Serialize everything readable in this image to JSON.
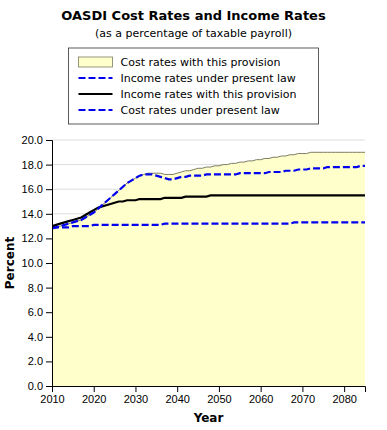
{
  "chart_data": {
    "type": "line",
    "title": "OASDI Cost Rates and Income Rates",
    "subtitle": "(as a percentage of taxable payroll)",
    "x_label": "Year",
    "y_label": "Percent",
    "x": [
      2010,
      2011,
      2012,
      2013,
      2014,
      2015,
      2016,
      2017,
      2018,
      2019,
      2020,
      2021,
      2022,
      2023,
      2024,
      2025,
      2026,
      2027,
      2028,
      2029,
      2030,
      2031,
      2032,
      2033,
      2034,
      2035,
      2036,
      2037,
      2038,
      2039,
      2040,
      2041,
      2042,
      2043,
      2044,
      2045,
      2046,
      2047,
      2048,
      2049,
      2050,
      2051,
      2052,
      2053,
      2054,
      2055,
      2056,
      2057,
      2058,
      2059,
      2060,
      2061,
      2062,
      2063,
      2064,
      2065,
      2066,
      2067,
      2068,
      2069,
      2070,
      2071,
      2072,
      2073,
      2074,
      2075,
      2076,
      2077,
      2078,
      2079,
      2080,
      2081,
      2082,
      2083,
      2084,
      2085
    ],
    "series": [
      {
        "name": "Cost rates with this provision",
        "type": "area",
        "color": "#ffffcc",
        "line_style": "solid",
        "values": [
          12.8,
          12.9,
          13.0,
          13.1,
          13.2,
          13.3,
          13.4,
          13.5,
          13.7,
          13.9,
          14.1,
          14.4,
          14.7,
          15.0,
          15.3,
          15.6,
          15.9,
          16.2,
          16.5,
          16.7,
          16.9,
          17.1,
          17.2,
          17.3,
          17.3,
          17.3,
          17.3,
          17.2,
          17.2,
          17.2,
          17.3,
          17.4,
          17.5,
          17.5,
          17.6,
          17.7,
          17.7,
          17.8,
          17.8,
          17.9,
          17.9,
          18.0,
          18.0,
          18.1,
          18.1,
          18.2,
          18.2,
          18.3,
          18.3,
          18.4,
          18.4,
          18.5,
          18.5,
          18.6,
          18.6,
          18.7,
          18.7,
          18.8,
          18.8,
          18.9,
          18.9,
          18.9,
          19.0,
          19.0,
          19.0,
          19.0,
          19.0,
          19.0,
          19.0,
          19.0,
          19.0,
          19.0,
          19.0,
          19.0,
          19.0,
          19.0
        ]
      },
      {
        "name": "Income rates under present law",
        "type": "line",
        "color": "#0000ee",
        "line_style": "dashed",
        "values": [
          12.9,
          12.9,
          12.9,
          12.9,
          12.9,
          13.0,
          13.0,
          13.0,
          13.0,
          13.0,
          13.1,
          13.1,
          13.1,
          13.1,
          13.1,
          13.1,
          13.1,
          13.1,
          13.1,
          13.1,
          13.1,
          13.1,
          13.1,
          13.1,
          13.1,
          13.1,
          13.1,
          13.2,
          13.2,
          13.2,
          13.2,
          13.2,
          13.2,
          13.2,
          13.2,
          13.2,
          13.2,
          13.2,
          13.2,
          13.2,
          13.2,
          13.2,
          13.2,
          13.2,
          13.2,
          13.2,
          13.2,
          13.2,
          13.2,
          13.2,
          13.2,
          13.2,
          13.2,
          13.2,
          13.2,
          13.2,
          13.2,
          13.2,
          13.3,
          13.3,
          13.3,
          13.3,
          13.3,
          13.3,
          13.3,
          13.3,
          13.3,
          13.3,
          13.3,
          13.3,
          13.3,
          13.3,
          13.3,
          13.3,
          13.3,
          13.3
        ]
      },
      {
        "name": "Income rates with this provision",
        "type": "line",
        "color": "#000000",
        "line_style": "solid",
        "values": [
          13.0,
          13.1,
          13.2,
          13.3,
          13.4,
          13.5,
          13.6,
          13.7,
          13.9,
          14.1,
          14.3,
          14.5,
          14.6,
          14.7,
          14.8,
          14.9,
          15.0,
          15.0,
          15.1,
          15.1,
          15.1,
          15.2,
          15.2,
          15.2,
          15.2,
          15.2,
          15.2,
          15.3,
          15.3,
          15.3,
          15.3,
          15.3,
          15.4,
          15.4,
          15.4,
          15.4,
          15.4,
          15.4,
          15.5,
          15.5,
          15.5,
          15.5,
          15.5,
          15.5,
          15.5,
          15.5,
          15.5,
          15.5,
          15.5,
          15.5,
          15.5,
          15.5,
          15.5,
          15.5,
          15.5,
          15.5,
          15.5,
          15.5,
          15.5,
          15.5,
          15.5,
          15.5,
          15.5,
          15.5,
          15.5,
          15.5,
          15.5,
          15.5,
          15.5,
          15.5,
          15.5,
          15.5,
          15.5,
          15.5,
          15.5,
          15.5
        ]
      },
      {
        "name": "Cost rates under present law",
        "type": "line",
        "color": "#0000ee",
        "line_style": "dashed",
        "values": [
          12.8,
          12.9,
          13.0,
          13.1,
          13.2,
          13.3,
          13.4,
          13.5,
          13.7,
          13.9,
          14.1,
          14.4,
          14.7,
          15.0,
          15.3,
          15.6,
          15.9,
          16.2,
          16.5,
          16.7,
          16.9,
          17.1,
          17.2,
          17.2,
          17.2,
          17.1,
          17.0,
          16.9,
          16.8,
          16.8,
          16.9,
          17.0,
          17.0,
          17.1,
          17.1,
          17.1,
          17.1,
          17.2,
          17.2,
          17.2,
          17.2,
          17.2,
          17.2,
          17.2,
          17.2,
          17.3,
          17.3,
          17.3,
          17.3,
          17.3,
          17.3,
          17.3,
          17.4,
          17.4,
          17.4,
          17.4,
          17.5,
          17.5,
          17.5,
          17.6,
          17.6,
          17.6,
          17.7,
          17.7,
          17.7,
          17.7,
          17.8,
          17.8,
          17.8,
          17.8,
          17.8,
          17.8,
          17.8,
          17.8,
          17.9,
          17.9
        ]
      }
    ],
    "xlim": [
      2010,
      2085
    ],
    "xticks": [
      2010,
      2020,
      2030,
      2040,
      2050,
      2060,
      2070,
      2080
    ],
    "ylim": [
      0.0,
      20.0
    ],
    "yticks": [
      {
        "value": 0,
        "label": "0.0"
      },
      {
        "value": 2,
        "label": "2.0"
      },
      {
        "value": 4,
        "label": "4.0"
      },
      {
        "value": 6,
        "label": "6.0"
      },
      {
        "value": 8,
        "label": "8.0"
      },
      {
        "value": 10,
        "label": "10.0"
      },
      {
        "value": 12,
        "label": "12.0"
      },
      {
        "value": 14,
        "label": "14.0"
      },
      {
        "value": 16,
        "label": "16.0"
      },
      {
        "value": 18,
        "label": "18.0"
      },
      {
        "value": 20,
        "label": "20.0"
      }
    ],
    "grid": true,
    "legend": "top"
  }
}
